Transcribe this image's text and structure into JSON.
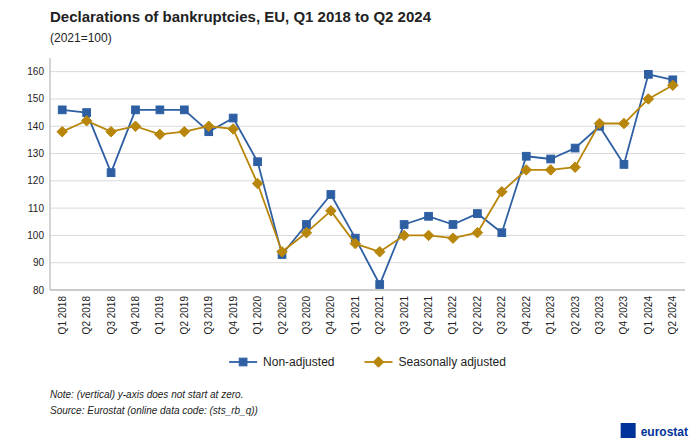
{
  "chart_data": {
    "type": "line",
    "title": "Declarations of bankruptcies, EU, Q1 2018 to Q2 2024",
    "subtitle": "(2021=100)",
    "annotations": [
      "Note: (vertical) y-axis does not start at zero.",
      "Source: Eurostat (online data code: (sts_rb_q))",
      "eurostat"
    ],
    "categories": [
      "Q1 2018",
      "Q2 2018",
      "Q3 2018",
      "Q4 2018",
      "Q1 2019",
      "Q2 2019",
      "Q3 2019",
      "Q4 2019",
      "Q1 2020",
      "Q2 2020",
      "Q3 2020",
      "Q4 2020",
      "Q1 2021",
      "Q2 2021",
      "Q3 2021",
      "Q4 2021",
      "Q1 2022",
      "Q2 2022",
      "Q3 2022",
      "Q4 2022",
      "Q1 2023",
      "Q2 2023",
      "Q3 2023",
      "Q4 2023",
      "Q1 2024",
      "Q2 2024"
    ],
    "series": [
      {
        "name": "Non-adjusted",
        "color": "#2E5FA3",
        "marker": "square",
        "values": [
          146,
          145,
          123,
          146,
          146,
          146,
          138,
          143,
          127,
          93,
          104,
          115,
          99,
          82,
          104,
          107,
          104,
          108,
          101,
          129,
          128,
          132,
          140,
          126,
          159,
          157
        ]
      },
      {
        "name": "Seasonally adjusted",
        "color": "#B8860B",
        "marker": "diamond",
        "values": [
          138,
          142,
          138,
          140,
          137,
          138,
          140,
          139,
          119,
          94,
          101,
          109,
          97,
          94,
          100,
          100,
          99,
          101,
          116,
          124,
          124,
          125,
          141,
          141,
          150,
          155
        ]
      }
    ],
    "ylim": [
      80,
      165
    ],
    "yticks": [
      80,
      90,
      100,
      110,
      120,
      130,
      140,
      150,
      160
    ],
    "grid": true,
    "legend": "bottom"
  }
}
